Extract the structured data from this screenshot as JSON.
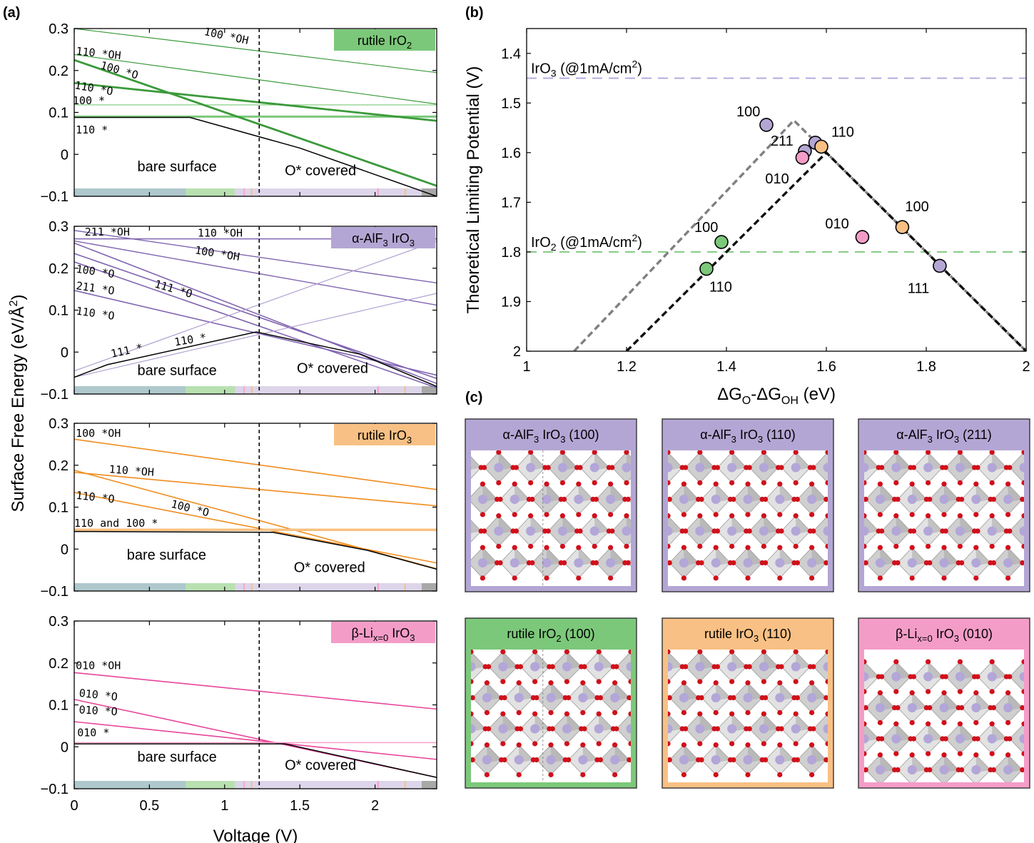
{
  "panel_labels": {
    "a": "(a)",
    "b": "(b)",
    "c": "(c)"
  },
  "colors": {
    "green": "#3a9a3a",
    "green_light": "#7cc87a",
    "purple": "#8064b0",
    "purple_light": "#b0a0d0",
    "orange": "#f08c1e",
    "orange_light": "#f8c080",
    "pink": "#e8459a",
    "pink_light": "#f8a0c8",
    "boxA": "#7cc87a",
    "boxB": "#b4a6d4",
    "boxC": "#f8c084",
    "boxD": "#f49cc8"
  },
  "bar_segments": [
    {
      "from": 0,
      "to": 0.74,
      "color": "#aec8cc"
    },
    {
      "from": 0.74,
      "to": 1.07,
      "color": "#b8e0b0"
    },
    {
      "from": 1.07,
      "to": 2.31,
      "color": "#ddd5ea"
    },
    {
      "from": 2.31,
      "to": 2.41,
      "color": "#a8a8a8"
    }
  ],
  "bar_ticks": [
    {
      "x": 1.13,
      "color": "#f8a8c8"
    },
    {
      "x": 1.18,
      "color": "#f8c080"
    },
    {
      "x": 2.02,
      "color": "#f4a0c4"
    },
    {
      "x": 2.2,
      "color": "#f8c080"
    }
  ],
  "chart_data": [
    {
      "type": "line",
      "id": "a1",
      "title": "rutile IrO2",
      "title_main": "rutile IrO",
      "title_sub": "2",
      "xlabel": "",
      "ylabel": "",
      "xlim": [
        0,
        2.41
      ],
      "ylim": [
        -0.1,
        0.3
      ],
      "yticks": [
        "0.3",
        "0.2",
        "0.1",
        "0",
        "−0.1"
      ],
      "ytick_values": [
        0.3,
        0.2,
        0.1,
        0,
        -0.1
      ],
      "vline": 1.23,
      "region_labels": [
        {
          "text": "bare surface",
          "x": 0.42,
          "y": -0.04
        },
        {
          "text": "O* covered",
          "x": 1.4,
          "y": -0.05
        }
      ],
      "series": [
        {
          "x": [
            0,
            2.41
          ],
          "y": [
            0.3,
            0.195
          ],
          "w": 1.2,
          "c": "green"
        },
        {
          "x": [
            0,
            2.41
          ],
          "y": [
            0.238,
            0.12
          ],
          "w": 1.2,
          "c": "green"
        },
        {
          "x": [
            0,
            2.41
          ],
          "y": [
            0.118,
            0.118
          ],
          "w": 1.2,
          "c": "green_light"
        },
        {
          "x": [
            0,
            2.41
          ],
          "y": [
            0.09,
            0.09
          ],
          "w": 3,
          "c": "green_light"
        },
        {
          "x": [
            0,
            2.41
          ],
          "y": [
            0.225,
            -0.075
          ],
          "w": 2.8,
          "c": "green"
        },
        {
          "x": [
            0,
            2.41
          ],
          "y": [
            0.17,
            0.08
          ],
          "w": 2.8,
          "c": "green"
        },
        {
          "x": [
            0,
            0.77,
            1.5,
            2.41
          ],
          "y": [
            0.088,
            0.088,
            0.015,
            -0.1
          ],
          "w": 1.5,
          "c": "black"
        }
      ],
      "labels": [
        {
          "text": "100 *OH",
          "x": 0.86,
          "y": 0.285,
          "rot": 12
        },
        {
          "text": "110 *OH",
          "x": 0.01,
          "y": 0.238,
          "rot": 6
        },
        {
          "text": "100 *O",
          "x": 0.17,
          "y": 0.205,
          "rot": 16
        },
        {
          "text": "110 *O",
          "x": 0.0,
          "y": 0.157,
          "rot": 10
        },
        {
          "text": "100 *",
          "x": -0.01,
          "y": 0.12,
          "rot": 0
        },
        {
          "text": "110 *",
          "x": 0.01,
          "y": 0.05,
          "rot": 0
        }
      ]
    },
    {
      "type": "line",
      "id": "a2",
      "title": "α-AlF3 IrO3",
      "title_main": "α-AlF",
      "title_sub": "3",
      "title_tail": " IrO",
      "title_sub2": "3",
      "xlabel": "",
      "ylabel": "",
      "xlim": [
        0,
        2.41
      ],
      "ylim": [
        -0.1,
        0.3
      ],
      "yticks": [
        "0.3",
        "0.2",
        "0.1",
        "0",
        "−0.1"
      ],
      "ytick_values": [
        0.3,
        0.2,
        0.1,
        0,
        -0.1
      ],
      "vline": 1.23,
      "region_labels": [
        {
          "text": "bare surface",
          "x": 0.42,
          "y": -0.055
        },
        {
          "text": "O* covered",
          "x": 1.48,
          "y": -0.05
        }
      ],
      "series": [
        {
          "x": [
            0,
            2.41
          ],
          "y": [
            0.27,
            0.27
          ],
          "w": 1.6,
          "c": "purple"
        },
        {
          "x": [
            0,
            2.41
          ],
          "y": [
            0.29,
            0.165
          ],
          "w": 1.4,
          "c": "purple"
        },
        {
          "x": [
            0,
            2.41
          ],
          "y": [
            0.265,
            0.112
          ],
          "w": 1.4,
          "c": "purple"
        },
        {
          "x": [
            0,
            2.41
          ],
          "y": [
            0.26,
            -0.075
          ],
          "w": 1.6,
          "c": "purple"
        },
        {
          "x": [
            0,
            2.41
          ],
          "y": [
            0.235,
            -0.063
          ],
          "w": 1.6,
          "c": "purple"
        },
        {
          "x": [
            0,
            2.41
          ],
          "y": [
            0.215,
            -0.085
          ],
          "w": 1.6,
          "c": "purple"
        },
        {
          "x": [
            0,
            2.41
          ],
          "y": [
            0.147,
            -0.055
          ],
          "w": 1.6,
          "c": "purple"
        },
        {
          "x": [
            0,
            2.41
          ],
          "y": [
            -0.045,
            0.265
          ],
          "w": 1.2,
          "c": "purple_light"
        },
        {
          "x": [
            0,
            2.41
          ],
          "y": [
            -0.06,
            0.14
          ],
          "w": 1.2,
          "c": "purple_light"
        },
        {
          "x": [
            0,
            0.22,
            1.21,
            1.9,
            2.41
          ],
          "y": [
            -0.06,
            -0.03,
            0.048,
            -0.005,
            -0.082
          ],
          "w": 1.5,
          "c": "black"
        }
      ],
      "labels": [
        {
          "text": "211 *OH",
          "x": 0.07,
          "y": 0.278,
          "rot": 0
        },
        {
          "text": "110 *OH",
          "x": 0.82,
          "y": 0.275,
          "rot": 0
        },
        {
          "text": "100 *OH",
          "x": 0.8,
          "y": 0.235,
          "rot": 9
        },
        {
          "text": "100 *O",
          "x": 0.01,
          "y": 0.19,
          "rot": 8
        },
        {
          "text": "111 *O",
          "x": 0.53,
          "y": 0.155,
          "rot": 16
        },
        {
          "text": "211 *O",
          "x": 0.01,
          "y": 0.15,
          "rot": 8
        },
        {
          "text": "110 *O",
          "x": 0.01,
          "y": 0.09,
          "rot": 8
        },
        {
          "text": "111 *",
          "x": 0.25,
          "y": -0.013,
          "rot": -12
        },
        {
          "text": "110 *",
          "x": 0.67,
          "y": 0.015,
          "rot": -9
        }
      ]
    },
    {
      "type": "line",
      "id": "a3",
      "title": "rutile IrO3",
      "title_main": "rutile IrO",
      "title_sub": "3",
      "xlabel": "",
      "ylabel": "",
      "xlim": [
        0,
        2.41
      ],
      "ylim": [
        -0.1,
        0.3
      ],
      "yticks": [
        "0.3",
        "0.2",
        "0.1",
        "0",
        "−0.1"
      ],
      "ytick_values": [
        0.3,
        0.2,
        0.1,
        0,
        -0.1
      ],
      "vline": 1.23,
      "region_labels": [
        {
          "text": "bare surface",
          "x": 0.35,
          "y": -0.025
        },
        {
          "text": "O* covered",
          "x": 1.46,
          "y": -0.055
        }
      ],
      "series": [
        {
          "x": [
            0,
            2.41
          ],
          "y": [
            0.262,
            0.142
          ],
          "w": 1.6,
          "c": "orange"
        },
        {
          "x": [
            0,
            2.41
          ],
          "y": [
            0.183,
            0.103
          ],
          "w": 1.6,
          "c": "orange"
        },
        {
          "x": [
            0,
            2.41
          ],
          "y": [
            0.188,
            -0.047
          ],
          "w": 1.6,
          "c": "orange"
        },
        {
          "x": [
            0,
            2.41
          ],
          "y": [
            0.135,
            -0.033
          ],
          "w": 1.6,
          "c": "orange"
        },
        {
          "x": [
            0,
            2.41
          ],
          "y": [
            0.046,
            0.046
          ],
          "w": 3.5,
          "c": "orange_light"
        },
        {
          "x": [
            0,
            1.32,
            1.95,
            2.41
          ],
          "y": [
            0.042,
            0.04,
            -0.003,
            -0.048
          ],
          "w": 1.5,
          "c": "black"
        }
      ],
      "labels": [
        {
          "text": "100 *OH",
          "x": 0.01,
          "y": 0.268,
          "rot": 0
        },
        {
          "text": "110 *OH",
          "x": 0.23,
          "y": 0.182,
          "rot": 4
        },
        {
          "text": "110 *O",
          "x": 0.01,
          "y": 0.12,
          "rot": 6
        },
        {
          "text": "100 *O",
          "x": 0.64,
          "y": 0.1,
          "rot": 14
        },
        {
          "text": "110 and 100 *",
          "x": 0.0,
          "y": 0.053,
          "rot": 0
        }
      ]
    },
    {
      "type": "line",
      "id": "a4",
      "title": "β-Lix=0 IrO3",
      "title_main": "β-Li",
      "title_sub": "x=0",
      "title_tail": " IrO",
      "title_sub2": "3",
      "xlabel": "Voltage (V)",
      "ylabel": "",
      "xlim": [
        0,
        2.41
      ],
      "ylim": [
        -0.1,
        0.3
      ],
      "yticks": [
        "0.3",
        "0.2",
        "0.1",
        "0",
        "−0.1"
      ],
      "ytick_values": [
        0.3,
        0.2,
        0.1,
        0,
        -0.1
      ],
      "xticks": [
        "0",
        "0.5",
        "1",
        "1.5",
        "2"
      ],
      "xtick_values": [
        0,
        0.5,
        1,
        1.5,
        2
      ],
      "vline": 1.23,
      "region_labels": [
        {
          "text": "bare surface",
          "x": 0.42,
          "y": -0.035
        },
        {
          "text": "O* covered",
          "x": 1.4,
          "y": -0.055
        }
      ],
      "series": [
        {
          "x": [
            0,
            2.41
          ],
          "y": [
            0.177,
            0.09
          ],
          "w": 1.6,
          "c": "pink"
        },
        {
          "x": [
            0,
            2.41
          ],
          "y": [
            0.113,
            -0.073
          ],
          "w": 1.6,
          "c": "pink"
        },
        {
          "x": [
            0,
            2.41
          ],
          "y": [
            0.06,
            -0.03
          ],
          "w": 1.6,
          "c": "pink"
        },
        {
          "x": [
            0,
            2.41
          ],
          "y": [
            0.01,
            0.01
          ],
          "w": 1.5,
          "c": "pink_light"
        },
        {
          "x": [
            0,
            1.4,
            2.41
          ],
          "y": [
            0.007,
            0.007,
            -0.073
          ],
          "w": 1.5,
          "c": "black"
        }
      ],
      "labels": [
        {
          "text": "010 *OH",
          "x": 0.01,
          "y": 0.185,
          "rot": 0
        },
        {
          "text": "010 *O",
          "x": 0.03,
          "y": 0.12,
          "rot": 6
        },
        {
          "text": "010 *O",
          "x": 0.03,
          "y": 0.08,
          "rot": 3
        },
        {
          "text": "010 *",
          "x": 0.02,
          "y": 0.025,
          "rot": 0
        }
      ]
    },
    {
      "type": "scatter",
      "id": "b",
      "xlabel": "ΔGO-ΔGOH (eV)",
      "ylabel": "Theoretical Limiting Potential (V)",
      "xlim": [
        1,
        2
      ],
      "ylim": [
        1.35,
        2.0
      ],
      "y_inverted": true,
      "xticks": [
        "1",
        "1.2",
        "1.4",
        "1.6",
        "1.8",
        "2"
      ],
      "xtick_values": [
        1,
        1.2,
        1.4,
        1.6,
        1.8,
        2
      ],
      "yticks": [
        "1.4",
        "1.5",
        "1.6",
        "1.7",
        "1.8",
        "1.9",
        "2"
      ],
      "ytick_values": [
        1.4,
        1.5,
        1.6,
        1.7,
        1.8,
        1.9,
        2.0
      ],
      "hlines": [
        {
          "y": 1.45,
          "c": "#b4a4dc",
          "label_main": "IrO",
          "label_sub": "3",
          "label_tail": " (@1mA/cm",
          "label_sup": "2",
          "label_end": ")",
          "label": "IrO3 (@1mA/cm2)"
        },
        {
          "y": 1.8,
          "c": "#80c880",
          "label_main": "IrO",
          "label_sub": "2",
          "label_tail": " (@1mA/cm",
          "label_sup": "2",
          "label_end": ")",
          "label": "IrO2 (@1mA/cm2)"
        }
      ],
      "volcanoes": [
        {
          "x": [
            1.095,
            1.535,
            2.0
          ],
          "y": [
            2.0,
            1.535,
            2.0
          ],
          "c": "#808080"
        },
        {
          "x": [
            1.2,
            1.6,
            2.0
          ],
          "y": [
            2.0,
            1.6,
            2.0
          ],
          "c": "#111111"
        }
      ],
      "points": [
        {
          "x": 1.39,
          "y": 1.78,
          "label": "100",
          "c": "#7cc87a"
        },
        {
          "x": 1.36,
          "y": 1.834,
          "label": "110",
          "c": "#7cc87a"
        },
        {
          "x": 1.48,
          "y": 1.544,
          "label": "100",
          "c": "#b4a6d4"
        },
        {
          "x": 1.557,
          "y": 1.597,
          "label": "211",
          "c": "#b4a6d4"
        },
        {
          "x": 1.578,
          "y": 1.58,
          "label": "",
          "c": "#b4a6d4"
        },
        {
          "x": 1.827,
          "y": 1.828,
          "label": "111",
          "c": "#b4a6d4"
        },
        {
          "x": 1.59,
          "y": 1.588,
          "label": "110",
          "c": "#f8c084"
        },
        {
          "x": 1.752,
          "y": 1.75,
          "label": "100",
          "c": "#f8c084"
        },
        {
          "x": 1.552,
          "y": 1.61,
          "label": "010",
          "c": "#f49cc8"
        },
        {
          "x": 1.672,
          "y": 1.77,
          "label": "010",
          "c": "#f49cc8"
        }
      ]
    }
  ],
  "shared": {
    "ylabel": "Surface Free Energy (eV/Å",
    "ylabel_sup": "2",
    "ylabel_end": ")"
  },
  "structures": [
    {
      "main": "α-AlF",
      "s1": "3",
      "mid": " IrO",
      "s2": "3",
      "tail": " (100)",
      "color": "#b4a6d4",
      "style": "a"
    },
    {
      "main": "α-AlF",
      "s1": "3",
      "mid": " IrO",
      "s2": "3",
      "tail": " (110)",
      "color": "#b4a6d4",
      "style": "b"
    },
    {
      "main": "α-AlF",
      "s1": "3",
      "mid": " IrO",
      "s2": "3",
      "tail": " (211)",
      "color": "#b4a6d4",
      "style": "c"
    },
    {
      "main": "rutile IrO",
      "s1": "2",
      "mid": "",
      "s2": "",
      "tail": " (100)",
      "color": "#7cc87a",
      "style": "d"
    },
    {
      "main": "rutile IrO",
      "s1": "3",
      "mid": "",
      "s2": "",
      "tail": " (110)",
      "color": "#f8c084",
      "style": "e"
    },
    {
      "main": "β-Li",
      "s1": "x=0",
      "mid": " IrO",
      "s2": "3",
      "tail": " (010)",
      "color": "#f49cc8",
      "style": "f"
    }
  ]
}
